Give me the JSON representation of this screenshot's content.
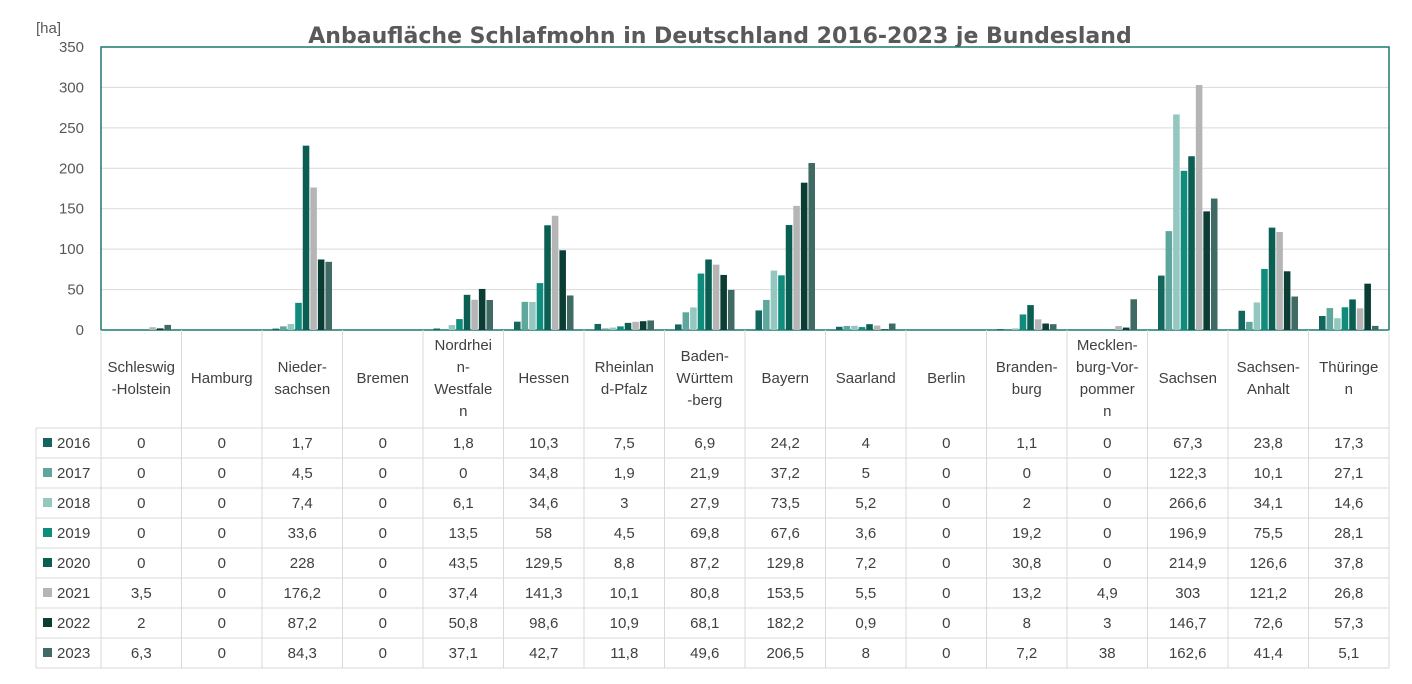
{
  "chart_data": {
    "type": "bar",
    "title": "Anbaufläche Schlafmohn in Deutschland 2016-2023 je Bundesland",
    "ylabel": "[ha]",
    "xlabel": "",
    "ylim": [
      0,
      350
    ],
    "yticks": [
      "0",
      "50",
      "100",
      "150",
      "200",
      "250",
      "300",
      "350"
    ],
    "grid": true,
    "legend": "table-left",
    "categories": [
      [
        "Schleswig",
        "-Holstein"
      ],
      [
        "Hamburg"
      ],
      [
        "Nieder-",
        "sachsen"
      ],
      [
        "Bremen"
      ],
      [
        "Nordrhei",
        "n-",
        "Westfale",
        "n"
      ],
      [
        "Hessen"
      ],
      [
        "Rheinlan",
        "d-Pfalz"
      ],
      [
        "Baden-",
        "Württem",
        "-berg"
      ],
      [
        "Bayern"
      ],
      [
        "Saarland"
      ],
      [
        "Berlin"
      ],
      [
        "Branden-",
        "burg"
      ],
      [
        "Mecklen-",
        "burg-Vor-",
        "pommer",
        "n"
      ],
      [
        "Sachsen"
      ],
      [
        "Sachsen-",
        "Anhalt"
      ],
      [
        "Thüringe",
        "n"
      ]
    ],
    "series": [
      {
        "name": "2016",
        "color": "#12665e",
        "labels": [
          "0",
          "0",
          "1,7",
          "0",
          "1,8",
          "10,3",
          "7,5",
          "6,9",
          "24,2",
          "4",
          "0",
          "1,1",
          "0",
          "67,3",
          "23,8",
          "17,3"
        ],
        "values": [
          0,
          0,
          1.7,
          0,
          1.8,
          10.3,
          7.5,
          6.9,
          24.2,
          4,
          0,
          1.1,
          0,
          67.3,
          23.8,
          17.3
        ]
      },
      {
        "name": "2017",
        "color": "#5fa69c",
        "labels": [
          "0",
          "0",
          "4,5",
          "0",
          "0",
          "34,8",
          "1,9",
          "21,9",
          "37,2",
          "5",
          "0",
          "0",
          "0",
          "122,3",
          "10,1",
          "27,1"
        ],
        "values": [
          0,
          0,
          4.5,
          0,
          0,
          34.8,
          1.9,
          21.9,
          37.2,
          5,
          0,
          0,
          0,
          122.3,
          10.1,
          27.1
        ]
      },
      {
        "name": "2018",
        "color": "#94c7c0",
        "labels": [
          "0",
          "0",
          "7,4",
          "0",
          "6,1",
          "34,6",
          "3",
          "27,9",
          "73,5",
          "5,2",
          "0",
          "2",
          "0",
          "266,6",
          "34,1",
          "14,6"
        ],
        "values": [
          0,
          0,
          7.4,
          0,
          6.1,
          34.6,
          3,
          27.9,
          73.5,
          5.2,
          0,
          2,
          0,
          266.6,
          34.1,
          14.6
        ]
      },
      {
        "name": "2019",
        "color": "#0f8c7c",
        "labels": [
          "0",
          "0",
          "33,6",
          "0",
          "13,5",
          "58",
          "4,5",
          "69,8",
          "67,6",
          "3,6",
          "0",
          "19,2",
          "0",
          "196,9",
          "75,5",
          "28,1"
        ],
        "values": [
          0,
          0,
          33.6,
          0,
          13.5,
          58,
          4.5,
          69.8,
          67.6,
          3.6,
          0,
          19.2,
          0,
          196.9,
          75.5,
          28.1
        ]
      },
      {
        "name": "2020",
        "color": "#0a5f52",
        "labels": [
          "0",
          "0",
          "228",
          "0",
          "43,5",
          "129,5",
          "8,8",
          "87,2",
          "129,8",
          "7,2",
          "0",
          "30,8",
          "0",
          "214,9",
          "126,6",
          "37,8"
        ],
        "values": [
          0,
          0,
          228,
          0,
          43.5,
          129.5,
          8.8,
          87.2,
          129.8,
          7.2,
          0,
          30.8,
          0,
          214.9,
          126.6,
          37.8
        ]
      },
      {
        "name": "2021",
        "color": "#b5b5b5",
        "labels": [
          "3,5",
          "0",
          "176,2",
          "0",
          "37,4",
          "141,3",
          "10,1",
          "80,8",
          "153,5",
          "5,5",
          "0",
          "13,2",
          "4,9",
          "303",
          "121,2",
          "26,8"
        ],
        "values": [
          3.5,
          0,
          176.2,
          0,
          37.4,
          141.3,
          10.1,
          80.8,
          153.5,
          5.5,
          0,
          13.2,
          4.9,
          303,
          121.2,
          26.8
        ]
      },
      {
        "name": "2022",
        "color": "#0b3d35",
        "labels": [
          "2",
          "0",
          "87,2",
          "0",
          "50,8",
          "98,6",
          "10,9",
          "68,1",
          "182,2",
          "0,9",
          "0",
          "8",
          "3",
          "146,7",
          "72,6",
          "57,3"
        ],
        "values": [
          2,
          0,
          87.2,
          0,
          50.8,
          98.6,
          10.9,
          68.1,
          182.2,
          0.9,
          0,
          8,
          3,
          146.7,
          72.6,
          57.3
        ]
      },
      {
        "name": "2023",
        "color": "#3f6b64",
        "labels": [
          "6,3",
          "0",
          "84,3",
          "0",
          "37,1",
          "42,7",
          "11,8",
          "49,6",
          "206,5",
          "8",
          "0",
          "7,2",
          "38",
          "162,6",
          "41,4",
          "5,1"
        ],
        "values": [
          6.3,
          0,
          84.3,
          0,
          37.1,
          42.7,
          11.8,
          49.6,
          206.5,
          8,
          0,
          7.2,
          38,
          162.6,
          41.4,
          5.1
        ]
      }
    ]
  }
}
